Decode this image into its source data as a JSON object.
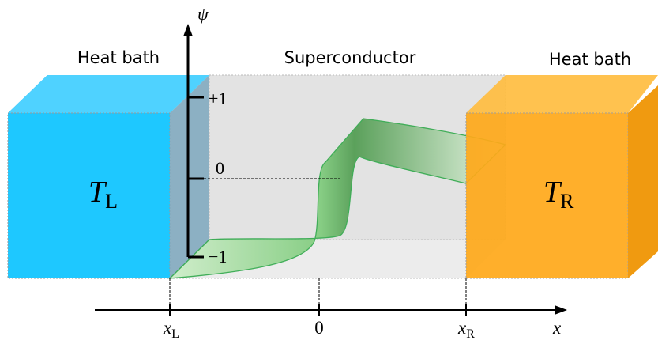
{
  "labels": {
    "left_bath": "Heat bath",
    "center": "Superconductor",
    "right_bath": "Heat bath"
  },
  "left_temp": {
    "main": "T",
    "sub": "L"
  },
  "right_temp": {
    "main": "T",
    "sub": "R"
  },
  "psi_axis": {
    "label": "ψ",
    "ticks": [
      "+1",
      "0",
      "−1"
    ]
  },
  "x_axis": {
    "label": "x",
    "ticks": [
      {
        "main": "x",
        "sub": "L"
      },
      {
        "main": "0"
      },
      {
        "main": "x",
        "sub": "R"
      }
    ]
  }
}
